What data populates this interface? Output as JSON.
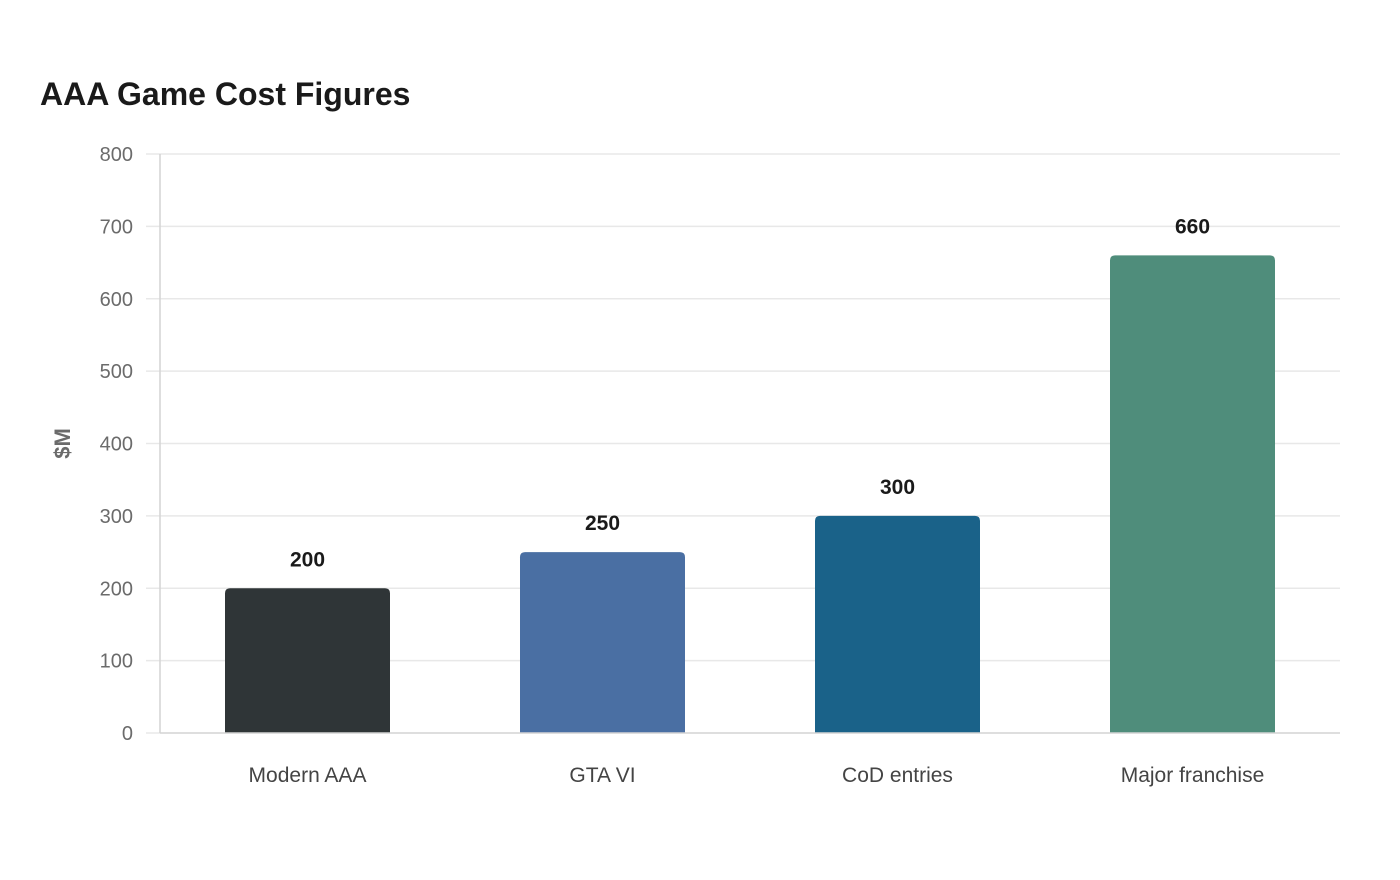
{
  "chart_data": {
    "type": "bar",
    "title": "AAA Game Cost Figures",
    "xlabel": "",
    "ylabel": "$M",
    "categories": [
      "Modern AAA",
      "GTA VI",
      "CoD entries",
      "Major franchise"
    ],
    "values": [
      200,
      250,
      300,
      660
    ],
    "colors": [
      "#2f3537",
      "#4a6fa3",
      "#1a6289",
      "#4f8d7b"
    ],
    "ylim": [
      0,
      800
    ],
    "yticks": [
      0,
      100,
      200,
      300,
      400,
      500,
      600,
      700,
      800
    ],
    "grid": true,
    "legend": "none"
  }
}
